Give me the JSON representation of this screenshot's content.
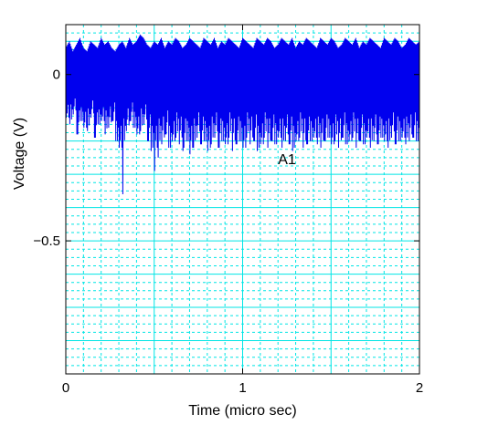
{
  "chart_data": {
    "type": "line",
    "title": "",
    "xlabel": "Time (micro sec)",
    "ylabel": "Voltage (V)",
    "xlim": [
      0,
      2
    ],
    "ylim": [
      -0.9,
      0.15
    ],
    "x_ticks": [
      0,
      1,
      2
    ],
    "x_tick_labels": [
      "0",
      "1",
      "2"
    ],
    "y_ticks": [
      0,
      -0.5
    ],
    "y_tick_labels": [
      "0",
      "−0.5"
    ],
    "grid": true,
    "grid_minor": true,
    "legend": "none",
    "annotations": [
      {
        "text": "A1",
        "x": 1.2,
        "y": -0.27
      }
    ],
    "series": [
      {
        "color": "#0000ee",
        "description": "dense high-frequency oscillation, peaks ~0.05-0.12 V, troughs ~-0.1 to -0.35 V",
        "x": [
          0.0,
          0.02,
          0.04,
          0.06,
          0.08,
          0.1,
          0.12,
          0.14,
          0.16,
          0.18,
          0.2,
          0.22,
          0.24,
          0.26,
          0.28,
          0.3,
          0.32,
          0.34,
          0.36,
          0.38,
          0.4,
          0.42,
          0.44,
          0.46,
          0.48,
          0.5,
          0.52,
          0.54,
          0.56,
          0.58,
          0.6,
          0.62,
          0.64,
          0.66,
          0.68,
          0.7,
          0.72,
          0.74,
          0.76,
          0.78,
          0.8,
          0.82,
          0.84,
          0.86,
          0.88,
          0.9,
          0.92,
          0.94,
          0.96,
          0.98,
          1.0,
          1.02,
          1.04,
          1.06,
          1.08,
          1.1,
          1.12,
          1.14,
          1.16,
          1.18,
          1.2,
          1.22,
          1.24,
          1.26,
          1.28,
          1.3,
          1.32,
          1.34,
          1.36,
          1.38,
          1.4,
          1.42,
          1.44,
          1.46,
          1.48,
          1.5,
          1.52,
          1.54,
          1.56,
          1.58,
          1.6,
          1.62,
          1.64,
          1.66,
          1.68,
          1.7,
          1.72,
          1.74,
          1.76,
          1.78,
          1.8,
          1.82,
          1.84,
          1.86,
          1.88,
          1.9,
          1.92,
          1.94,
          1.96,
          1.98,
          2.0
        ],
        "peaks": [
          0.08,
          0.1,
          0.07,
          0.09,
          0.11,
          0.08,
          0.07,
          0.1,
          0.09,
          0.08,
          0.11,
          0.09,
          0.1,
          0.08,
          0.07,
          0.09,
          0.1,
          0.08,
          0.11,
          0.09,
          0.1,
          0.12,
          0.11,
          0.09,
          0.08,
          0.1,
          0.09,
          0.11,
          0.08,
          0.1,
          0.09,
          0.11,
          0.1,
          0.08,
          0.09,
          0.11,
          0.1,
          0.09,
          0.08,
          0.11,
          0.1,
          0.09,
          0.11,
          0.08,
          0.1,
          0.09,
          0.11,
          0.1,
          0.09,
          0.08,
          0.11,
          0.1,
          0.09,
          0.08,
          0.11,
          0.1,
          0.09,
          0.11,
          0.1,
          0.08,
          0.09,
          0.11,
          0.1,
          0.09,
          0.11,
          0.08,
          0.1,
          0.09,
          0.11,
          0.1,
          0.09,
          0.08,
          0.11,
          0.1,
          0.09,
          0.11,
          0.1,
          0.08,
          0.09,
          0.11,
          0.1,
          0.09,
          0.11,
          0.08,
          0.1,
          0.09,
          0.11,
          0.1,
          0.09,
          0.08,
          0.11,
          0.1,
          0.09,
          0.11,
          0.1,
          0.08,
          0.09,
          0.11,
          0.1,
          0.09,
          0.1
        ],
        "troughs": [
          -0.13,
          -0.15,
          -0.12,
          -0.18,
          -0.14,
          -0.16,
          -0.17,
          -0.13,
          -0.19,
          -0.15,
          -0.14,
          -0.18,
          -0.16,
          -0.14,
          -0.2,
          -0.22,
          -0.36,
          -0.17,
          -0.14,
          -0.16,
          -0.18,
          -0.17,
          -0.15,
          -0.2,
          -0.23,
          -0.29,
          -0.25,
          -0.21,
          -0.18,
          -0.22,
          -0.2,
          -0.19,
          -0.21,
          -0.23,
          -0.2,
          -0.24,
          -0.22,
          -0.19,
          -0.21,
          -0.2,
          -0.23,
          -0.21,
          -0.19,
          -0.22,
          -0.2,
          -0.21,
          -0.19,
          -0.23,
          -0.21,
          -0.2,
          -0.22,
          -0.19,
          -0.21,
          -0.2,
          -0.23,
          -0.21,
          -0.19,
          -0.22,
          -0.2,
          -0.21,
          -0.19,
          -0.22,
          -0.2,
          -0.21,
          -0.23,
          -0.2,
          -0.19,
          -0.22,
          -0.21,
          -0.2,
          -0.19,
          -0.21,
          -0.22,
          -0.2,
          -0.19,
          -0.21,
          -0.2,
          -0.22,
          -0.19,
          -0.21,
          -0.2,
          -0.19,
          -0.22,
          -0.2,
          -0.21,
          -0.19,
          -0.22,
          -0.2,
          -0.21,
          -0.19,
          -0.2,
          -0.22,
          -0.19,
          -0.21,
          -0.2,
          -0.19,
          -0.21,
          -0.2,
          -0.19,
          -0.2,
          -0.19
        ]
      }
    ]
  }
}
